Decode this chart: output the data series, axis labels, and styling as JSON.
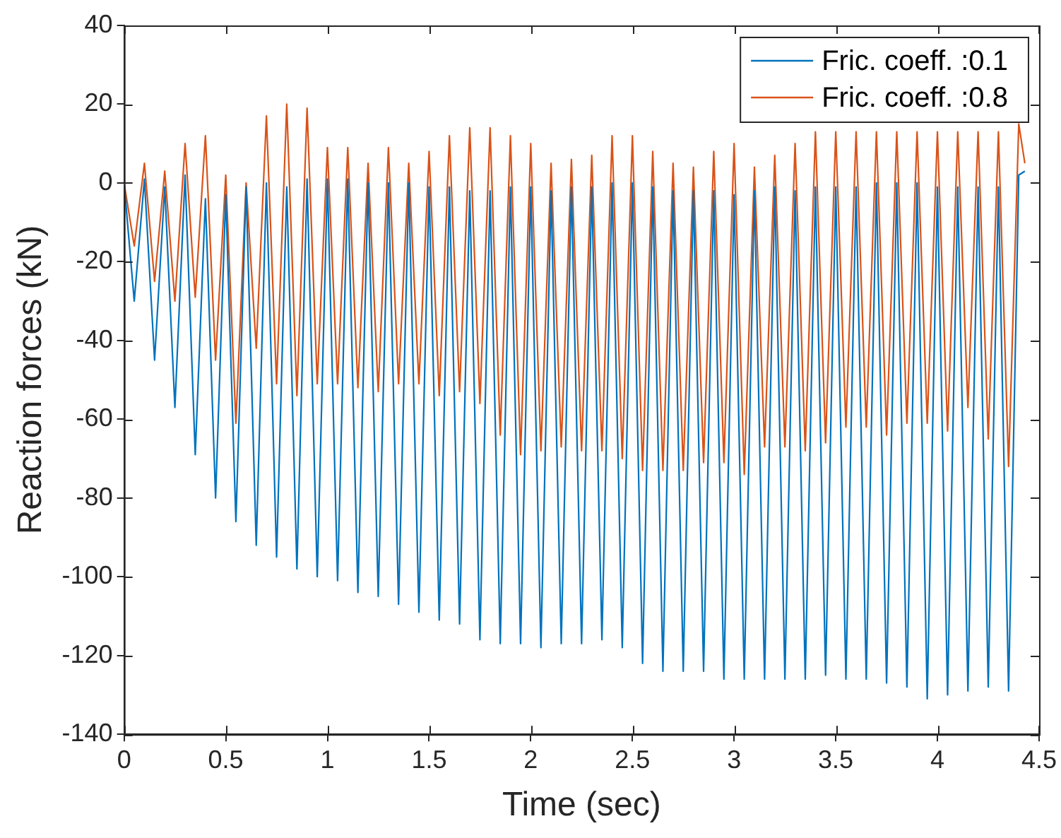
{
  "chart_data": {
    "type": "line",
    "xlabel": "Time (sec)",
    "ylabel": "Reaction forces (kN)",
    "x": [
      0,
      0.05,
      0.1,
      0.15,
      0.2,
      0.25,
      0.3,
      0.35,
      0.4,
      0.45,
      0.5,
      0.55,
      0.6,
      0.65,
      0.7,
      0.75,
      0.8,
      0.85,
      0.9,
      0.95,
      1,
      1.05,
      1.1,
      1.15,
      1.2,
      1.25,
      1.3,
      1.35,
      1.4,
      1.45,
      1.5,
      1.55,
      1.6,
      1.65,
      1.7,
      1.75,
      1.8,
      1.85,
      1.9,
      1.95,
      2,
      2.05,
      2.1,
      2.15,
      2.2,
      2.25,
      2.3,
      2.35,
      2.4,
      2.45,
      2.5,
      2.55,
      2.6,
      2.65,
      2.7,
      2.75,
      2.8,
      2.85,
      2.9,
      2.95,
      3,
      3.05,
      3.1,
      3.15,
      3.2,
      3.25,
      3.3,
      3.35,
      3.4,
      3.45,
      3.5,
      3.55,
      3.6,
      3.65,
      3.7,
      3.75,
      3.8,
      3.85,
      3.9,
      3.95,
      4,
      4.05,
      4.1,
      4.15,
      4.2,
      4.25,
      4.3,
      4.35,
      4.4,
      4.43
    ],
    "series": [
      {
        "name": "Fric. coeff. :0.1",
        "color": "#0072bd",
        "values": [
          0,
          -30,
          1,
          -45,
          -1,
          -57,
          2,
          -69,
          -4,
          -80,
          -3,
          -86,
          -1,
          -92,
          0,
          -95,
          -1,
          -98,
          1,
          -100,
          1,
          -101,
          1,
          -104,
          0,
          -105,
          0,
          -107,
          0,
          -109,
          -1,
          -111,
          -1,
          -112,
          -2,
          -116,
          -2,
          -117,
          -1,
          -117,
          -1,
          -118,
          -2,
          -117,
          -1,
          -117,
          -1,
          -116,
          0,
          -118,
          0,
          -122,
          -1,
          -124,
          -2,
          -124,
          -2,
          -124,
          -2,
          -126,
          -3,
          -126,
          -2,
          -126,
          -1,
          -126,
          -2,
          -126,
          -1,
          -125,
          -1,
          -126,
          -1,
          -126,
          0,
          -127,
          0,
          -128,
          0,
          -131,
          -1,
          -130,
          -1,
          -129,
          -1,
          -128,
          -1,
          -129,
          2,
          3
        ]
      },
      {
        "name": "Fric. coeff. :0.8",
        "color": "#d95319",
        "values": [
          0,
          -16,
          5,
          -25,
          3,
          -30,
          10,
          -29,
          12,
          -45,
          2,
          -61,
          0,
          -42,
          17,
          -51,
          20,
          -54,
          19,
          -51,
          9,
          -51,
          9,
          -52,
          5,
          -53,
          9,
          -51,
          5,
          -51,
          8,
          -54,
          12,
          -53,
          14,
          -56,
          14,
          -64,
          12,
          -69,
          10,
          -68,
          5,
          -67,
          6,
          -68,
          7,
          -68,
          12,
          -70,
          12,
          -73,
          8,
          -73,
          5,
          -73,
          4,
          -71,
          8,
          -71,
          10,
          -74,
          4,
          -67,
          7,
          -67,
          10,
          -68,
          13,
          -66,
          13,
          -62,
          13,
          -62,
          13,
          -64,
          13,
          -61,
          13,
          -61,
          13,
          -63,
          13,
          -57,
          13,
          -65,
          13,
          -72,
          15,
          5
        ]
      }
    ],
    "xlim": [
      0,
      4.5
    ],
    "xticks": [
      0,
      0.5,
      1,
      1.5,
      2,
      2.5,
      3,
      3.5,
      4,
      4.5
    ],
    "ylim": [
      -140,
      40
    ],
    "yticks": [
      -140,
      -120,
      -100,
      -80,
      -60,
      -40,
      -20,
      0,
      20,
      40
    ],
    "grid": false,
    "legend": "top right",
    "marker": "none",
    "line_style": "solid"
  }
}
